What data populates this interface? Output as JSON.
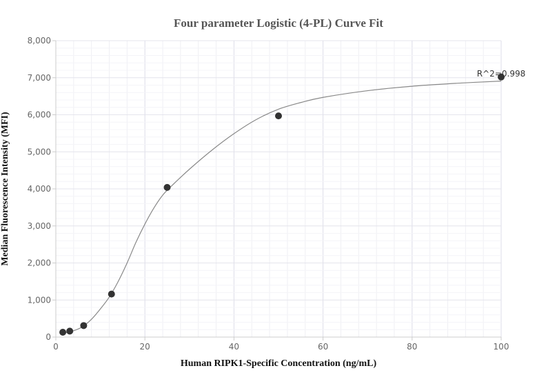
{
  "chart_data": {
    "type": "scatter",
    "title": "Four parameter Logistic (4-PL) Curve Fit",
    "xlabel": "Human RIPK1-Specific Concentration (ng/mL)",
    "ylabel": "Median Fluorescence Intensity (MFI)",
    "xlim": [
      0,
      100
    ],
    "ylim": [
      0,
      8000
    ],
    "x_ticks": [
      0,
      20,
      40,
      60,
      80,
      100
    ],
    "x_tick_labels": [
      "0",
      "20",
      "40",
      "60",
      "80",
      "100"
    ],
    "y_ticks": [
      0,
      1000,
      2000,
      3000,
      4000,
      5000,
      6000,
      7000,
      8000
    ],
    "y_tick_labels": [
      "0",
      "1,000",
      "2,000",
      "3,000",
      "4,000",
      "5,000",
      "6,000",
      "7,000",
      "8,000"
    ],
    "grid": true,
    "points": {
      "x": [
        1.5625,
        3.125,
        6.25,
        12.5,
        25,
        50,
        100
      ],
      "y": [
        130,
        160,
        310,
        1160,
        4040,
        5970,
        7020
      ]
    },
    "fit_curve": {
      "model": "4PL",
      "x": [
        2,
        3,
        4,
        6,
        8,
        10,
        12,
        14,
        16,
        18,
        20,
        22,
        24,
        26,
        30,
        35,
        40,
        45,
        50,
        55,
        60,
        70,
        80,
        90,
        100
      ],
      "y": [
        110,
        140,
        170,
        280,
        480,
        760,
        1080,
        1500,
        2000,
        2560,
        3050,
        3480,
        3830,
        4080,
        4530,
        5040,
        5490,
        5870,
        6150,
        6330,
        6470,
        6650,
        6770,
        6850,
        6910
      ]
    },
    "annotation": "R^2=0.998",
    "colors": {
      "points": "#333333",
      "curve": "#888888",
      "grid": "#e6e6ee",
      "axis": "#cccccc"
    }
  }
}
